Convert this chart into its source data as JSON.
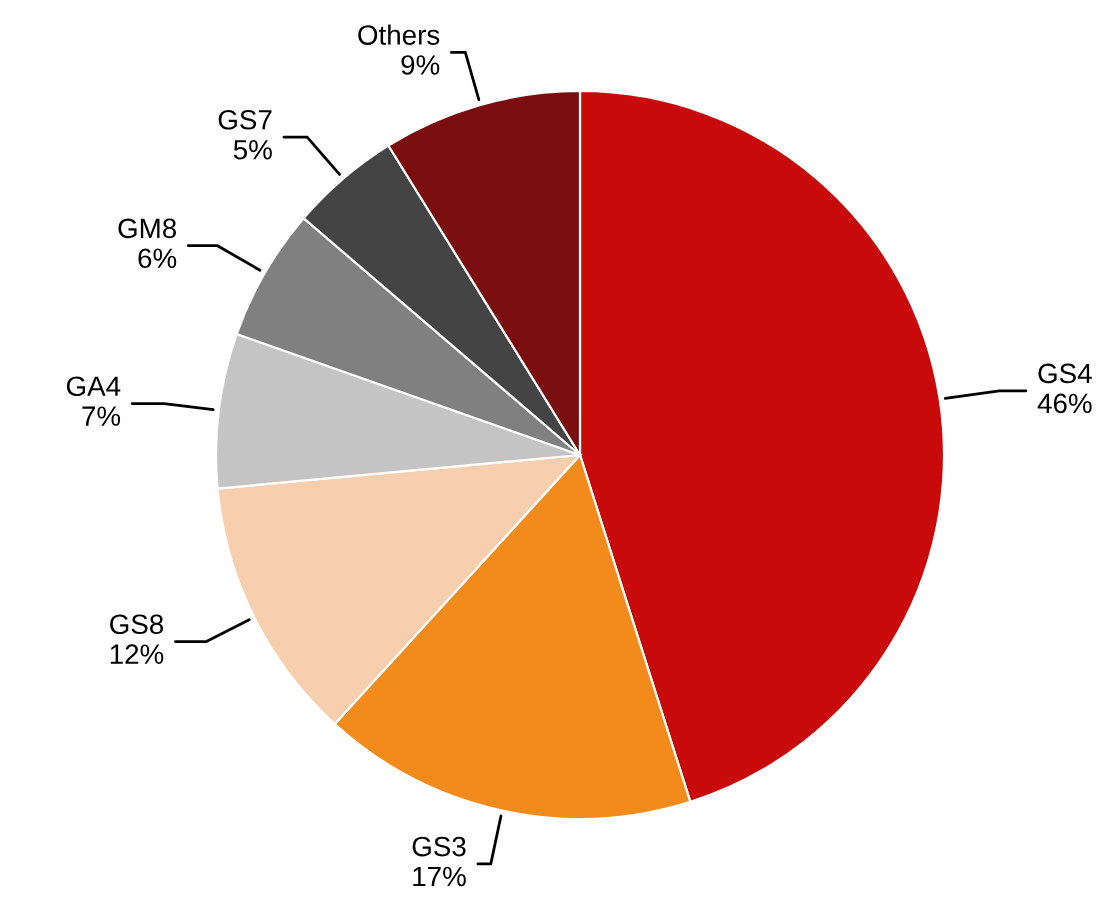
{
  "chart_data": {
    "type": "pie",
    "categories": [
      "GS4",
      "GS3",
      "GS8",
      "GA4",
      "GM8",
      "GS7",
      "Others"
    ],
    "values": [
      46,
      17,
      12,
      7,
      6,
      5,
      9
    ],
    "value_labels": [
      "46%",
      "17%",
      "12%",
      "7%",
      "6%",
      "5%",
      "9%"
    ],
    "colors": [
      "#c80a0a",
      "#f28a1c",
      "#f7cfae",
      "#c4c4c4",
      "#808080",
      "#444444",
      "#7a0e0e"
    ],
    "legend": false
  }
}
